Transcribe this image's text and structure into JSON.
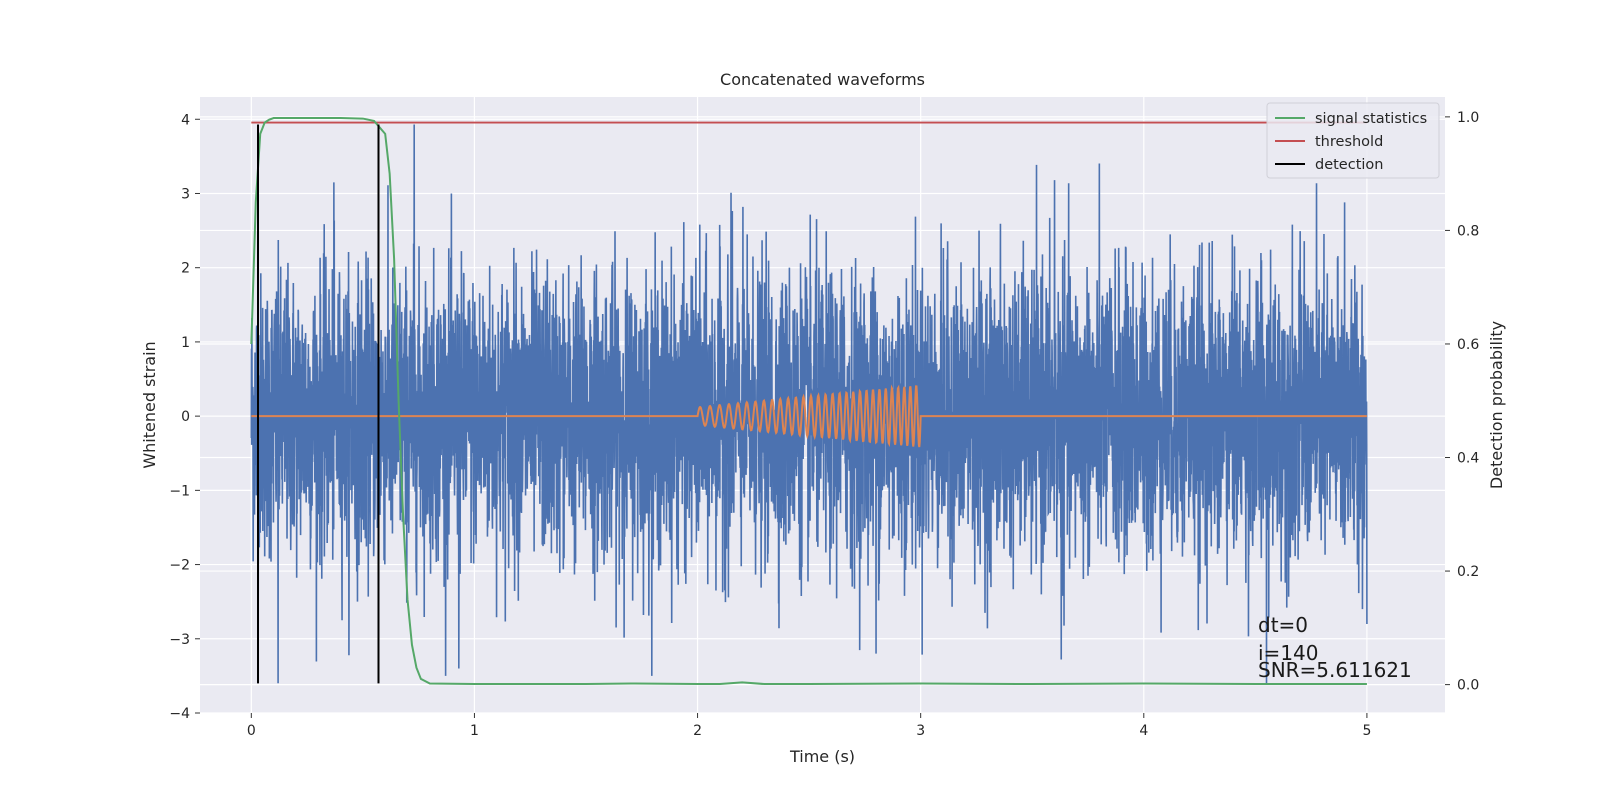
{
  "chart_data": {
    "type": "line",
    "title": "Concatenated waveforms",
    "xlabel": "Time (s)",
    "ylabel": "Whitened strain",
    "ylabel_right": "Detection probability",
    "xlim": [
      -0.23,
      5.35
    ],
    "ylim": [
      -4.0,
      4.3
    ],
    "ylim_right": [
      -0.05,
      1.035
    ],
    "xticks": [
      0,
      1,
      2,
      3,
      4,
      5
    ],
    "yticks": [
      -4,
      -3,
      -2,
      -1,
      0,
      1,
      2,
      3,
      4
    ],
    "yticks_right": [
      0.0,
      0.2,
      0.4,
      0.6,
      0.8,
      1.0
    ],
    "grid": true,
    "legend_position": "top-right",
    "colors": {
      "background": "#eaeaf2",
      "grid": "#ffffff",
      "strain": "#4c72b0",
      "template": "#dd8452",
      "signal_statistics": "#55a868",
      "threshold": "#c44e52",
      "detection": "#000000"
    },
    "series": [
      {
        "name": "",
        "role": "whitened strain noise",
        "x_range": [
          0,
          5
        ],
        "amplitude_std": 0.95,
        "notable_peaks": [
          {
            "x": 0.37,
            "y": 3.15
          },
          {
            "x": 0.73,
            "y": 3.93
          },
          {
            "x": 2.15,
            "y": 3.01
          },
          {
            "x": 2.8,
            "y": 2.9
          },
          {
            "x": 3.6,
            "y": 3.18
          },
          {
            "x": 4.9,
            "y": 2.88
          },
          {
            "x": 0.12,
            "y": -3.6
          },
          {
            "x": 0.93,
            "y": -3.4
          },
          {
            "x": 2.8,
            "y": -3.2
          },
          {
            "x": 3.63,
            "y": -3.28
          },
          {
            "x": 4.55,
            "y": -3.6
          },
          {
            "x": 5.0,
            "y": -2.8
          }
        ]
      },
      {
        "name": "",
        "role": "injected chirp template",
        "x_range": [
          0,
          5
        ],
        "chirp_start": 2.0,
        "chirp_end": 3.0,
        "amplitude_start": 0.12,
        "amplitude_end": 0.42
      },
      {
        "name": "signal statistics",
        "axis": "right",
        "x": [
          0,
          0.02,
          0.04,
          0.06,
          0.08,
          0.1,
          0.2,
          0.3,
          0.4,
          0.5,
          0.55,
          0.6,
          0.62,
          0.64,
          0.66,
          0.68,
          0.7,
          0.72,
          0.74,
          0.76,
          0.8,
          1.0,
          1.5,
          1.7,
          2.0,
          2.1,
          2.2,
          2.3,
          2.5,
          3.0,
          3.5,
          4.0,
          4.5,
          5.0
        ],
        "y": [
          0.6,
          0.85,
          0.97,
          0.99,
          0.995,
          0.998,
          0.998,
          0.998,
          0.998,
          0.997,
          0.993,
          0.97,
          0.9,
          0.75,
          0.5,
          0.3,
          0.15,
          0.07,
          0.03,
          0.01,
          0.002,
          0.001,
          0.001,
          0.002,
          0.001,
          0.001,
          0.004,
          0.001,
          0.001,
          0.002,
          0.001,
          0.002,
          0.001,
          0.001
        ]
      },
      {
        "name": "threshold",
        "axis": "right",
        "x": [
          0,
          5
        ],
        "y": [
          0.99,
          0.99
        ]
      },
      {
        "name": "detection",
        "axis": "left",
        "x": [
          0.03,
          0.57
        ],
        "y_bottom": -3.6,
        "y_top": 3.93
      }
    ],
    "legend": [
      "signal statistics",
      "threshold",
      "detection"
    ],
    "annotations": [
      "dt=0",
      "i=140",
      "SNR=5.611621"
    ]
  }
}
